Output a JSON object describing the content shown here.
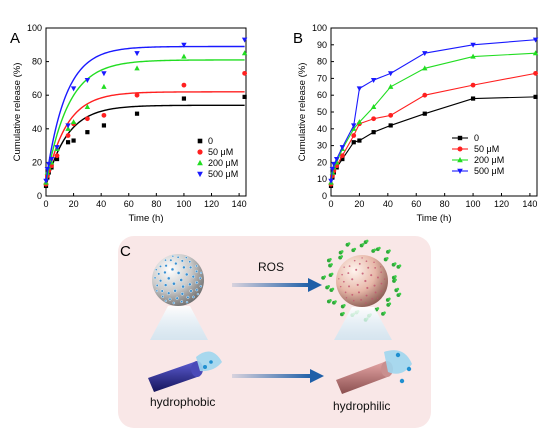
{
  "chart_data": [
    {
      "panel": "A",
      "type": "scatter",
      "fit_curves": true,
      "xlabel": "Time (h)",
      "ylabel": "Cumulative release (%)",
      "xlim": [
        0,
        145
      ],
      "ylim": [
        0,
        100
      ],
      "xticks": [
        0,
        20,
        40,
        60,
        80,
        100,
        120,
        140
      ],
      "yticks": [
        0,
        20,
        40,
        60,
        80,
        100
      ],
      "legend": "bottom-right",
      "x": [
        0,
        1,
        2,
        4,
        8,
        16,
        20,
        30,
        42,
        66,
        100,
        144
      ],
      "series": [
        {
          "name": "0",
          "color": "#000000",
          "marker": "square",
          "values": [
            6,
            11,
            14,
            17,
            22,
            32,
            33,
            38,
            42,
            49,
            58,
            59
          ],
          "fit_plateau": 54,
          "fit_rate": 0.065
        },
        {
          "name": "50 μM",
          "color": "#ff2020",
          "marker": "circle",
          "values": [
            7,
            12,
            15,
            18,
            24,
            36,
            43,
            46,
            48,
            60,
            66,
            73
          ],
          "fit_plateau": 62,
          "fit_rate": 0.068
        },
        {
          "name": "200 μM",
          "color": "#22dd22",
          "marker": "triangle-up",
          "values": [
            8,
            14,
            17,
            20,
            28,
            40,
            44,
            53,
            65,
            76,
            83,
            85
          ],
          "fit_plateau": 81,
          "fit_rate": 0.062
        },
        {
          "name": "500 μM",
          "color": "#1a1aff",
          "marker": "triangle-down",
          "values": [
            9,
            16,
            19,
            22,
            29,
            42,
            64,
            69,
            73,
            85,
            90,
            93
          ],
          "fit_plateau": 89,
          "fit_rate": 0.07
        }
      ]
    },
    {
      "panel": "B",
      "type": "line",
      "xlabel": "Time (h)",
      "ylabel": "Cumulative release (%)",
      "xlim": [
        0,
        145
      ],
      "ylim": [
        0,
        100
      ],
      "xticks": [
        0,
        20,
        40,
        60,
        80,
        100,
        120,
        140
      ],
      "yticks": [
        0,
        10,
        20,
        30,
        40,
        50,
        60,
        70,
        80,
        90,
        100
      ],
      "legend": "bottom-right",
      "x": [
        0,
        1,
        2,
        4,
        8,
        16,
        20,
        30,
        42,
        66,
        100,
        144
      ],
      "series": [
        {
          "name": "0",
          "color": "#000000",
          "marker": "square",
          "values": [
            6,
            11,
            14,
            17,
            22,
            32,
            33,
            38,
            42,
            49,
            58,
            59
          ]
        },
        {
          "name": "50 μM",
          "color": "#ff2020",
          "marker": "circle",
          "values": [
            7,
            12,
            15,
            18,
            24,
            36,
            43,
            46,
            48,
            60,
            66,
            73
          ]
        },
        {
          "name": "200 μM",
          "color": "#22dd22",
          "marker": "triangle-up",
          "values": [
            8,
            14,
            17,
            20,
            28,
            40,
            44,
            53,
            65,
            76,
            83,
            85
          ]
        },
        {
          "name": "500 μM",
          "color": "#1a1aff",
          "marker": "triangle-down",
          "values": [
            9,
            16,
            19,
            22,
            29,
            42,
            64,
            69,
            73,
            85,
            90,
            93
          ]
        }
      ]
    }
  ],
  "diagram": {
    "panel": "C",
    "arrow_label": "ROS",
    "left_label": "hydrophobic",
    "right_label": "hydrophilic",
    "colors": {
      "background": "#f9e7e7",
      "arrow": "#1f5fa8",
      "sphere_left": "#c9c9c9",
      "sphere_right": "#e7b7a8",
      "dot_left": "#3a8fd0",
      "dot_right": "#2faa3a",
      "rod_left": "#2a2a8f",
      "rod_right": "#c88080",
      "cap": "#9fd6ee"
    }
  }
}
